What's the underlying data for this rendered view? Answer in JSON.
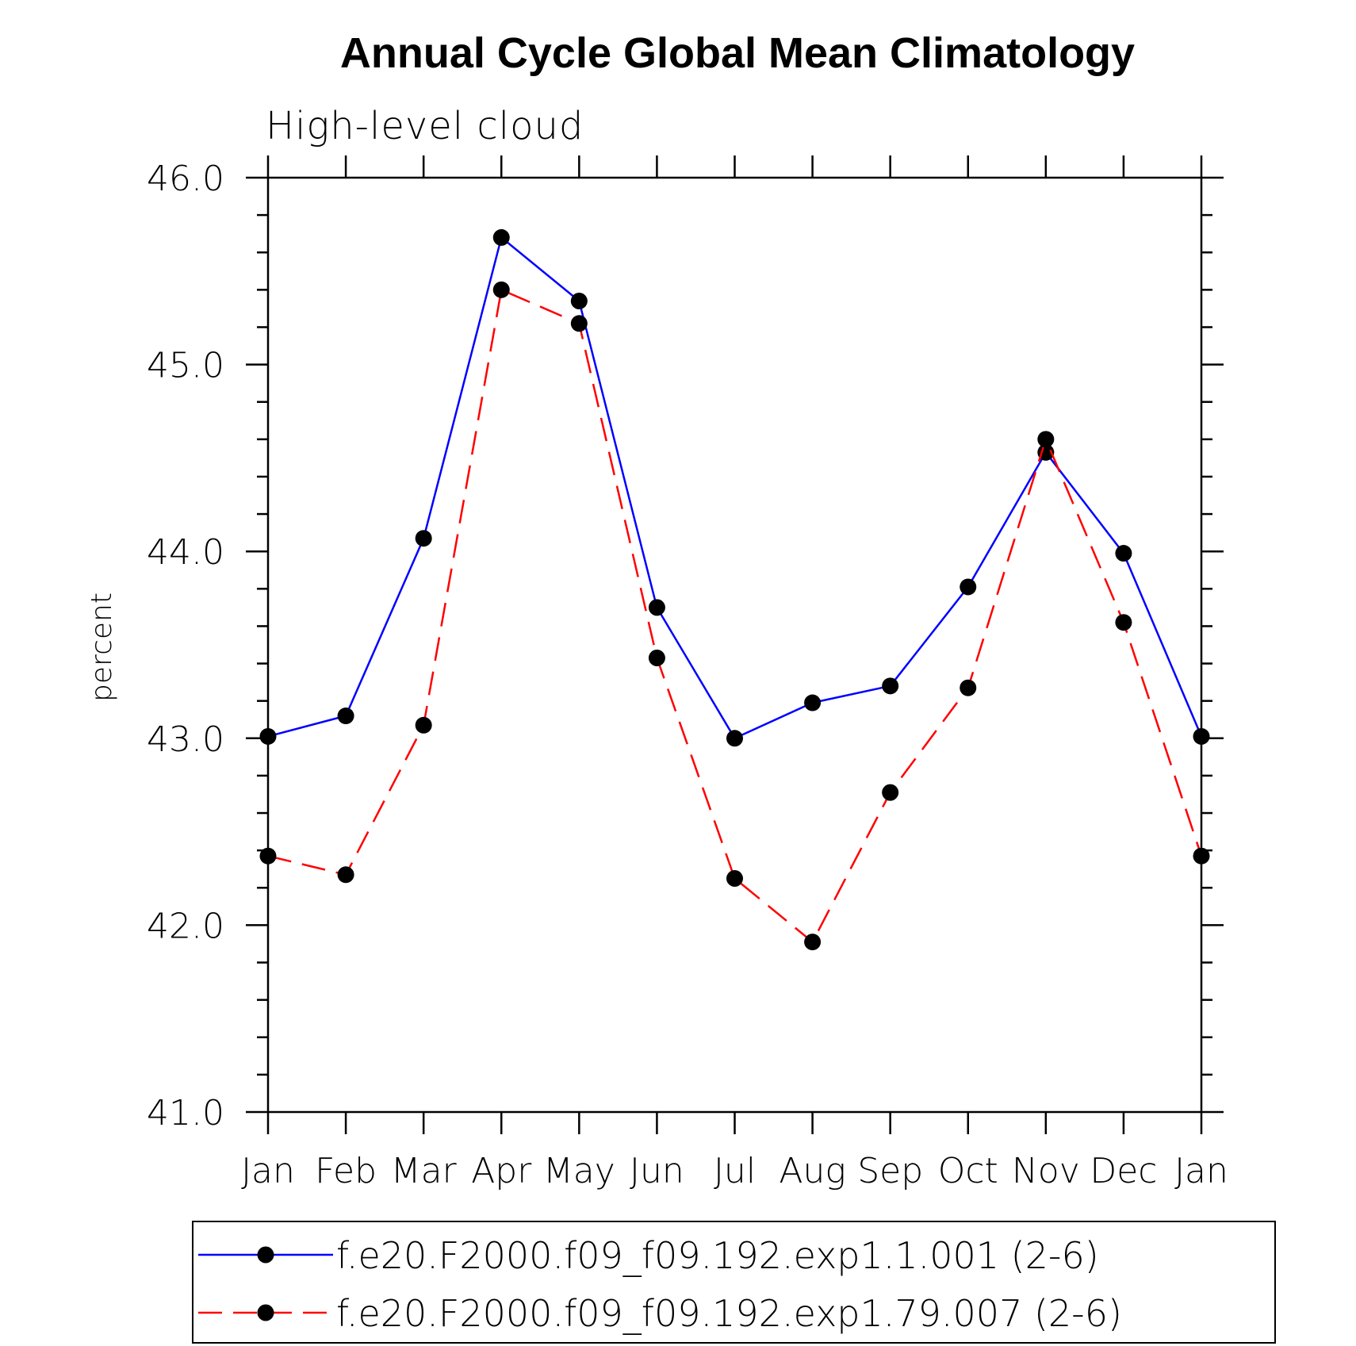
{
  "chart_data": {
    "type": "line",
    "title": "Annual Cycle Global Mean Climatology",
    "subtitle": "High-level cloud",
    "ylabel": "percent",
    "xlabel": "",
    "categories": [
      "Jan",
      "Feb",
      "Mar",
      "Apr",
      "May",
      "Jun",
      "Jul",
      "Aug",
      "Sep",
      "Oct",
      "Nov",
      "Dec",
      "Jan"
    ],
    "ylim": [
      41.0,
      46.0
    ],
    "yticks": [
      41.0,
      42.0,
      43.0,
      44.0,
      45.0,
      46.0
    ],
    "ytick_labels": [
      "41.0",
      "42.0",
      "43.0",
      "44.0",
      "45.0",
      "46.0"
    ],
    "yminor_step": 0.2,
    "legend_position": "bottom",
    "series": [
      {
        "name": "f.e20.F2000.f09_f09.192.exp1.1.001 (2-6)",
        "color": "#0000ff",
        "line_style": "solid",
        "marker": "filled-circle",
        "values": [
          43.01,
          43.12,
          44.07,
          45.68,
          45.34,
          43.7,
          43.0,
          43.19,
          43.28,
          43.81,
          44.53,
          43.99,
          43.01
        ]
      },
      {
        "name": "f.e20.F2000.f09_f09.192.exp1.79.007 (2-6)",
        "color": "#ff0000",
        "line_style": "dashed",
        "marker": "filled-circle",
        "values": [
          42.37,
          42.27,
          43.07,
          45.4,
          45.22,
          43.43,
          42.25,
          41.91,
          42.71,
          43.27,
          44.6,
          43.62,
          42.37
        ]
      }
    ]
  }
}
